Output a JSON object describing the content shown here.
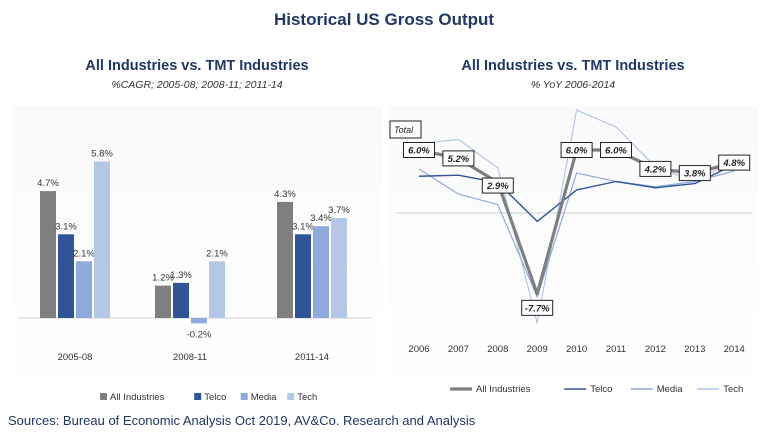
{
  "title": "Historical US Gross Output",
  "sources": "Sources: Bureau of Economic Analysis Oct 2019, AV&Co. Research and Analysis",
  "colors": {
    "heading": "#1f3864",
    "All Industries": "#7f7f7f",
    "Telco": "#2f5597",
    "Media": "#8faadc",
    "Tech": "#b4c7e7"
  },
  "chart_data": [
    {
      "type": "bar",
      "title": "All Industries vs. TMT Industries",
      "subtitle": "%CAGR; 2005-08; 2008-11; 2011-14",
      "categories": [
        "2005-08",
        "2008-11",
        "2011-14"
      ],
      "series": [
        {
          "name": "All Industries",
          "values": [
            4.7,
            1.2,
            4.3
          ],
          "labels": [
            "4.7%",
            "1.2%",
            "4.3%"
          ]
        },
        {
          "name": "Telco",
          "values": [
            3.1,
            1.3,
            3.1
          ],
          "labels": [
            "3.1%",
            "1.3%",
            "3.1%"
          ]
        },
        {
          "name": "Media",
          "values": [
            2.1,
            -0.2,
            3.4
          ],
          "labels": [
            "2.1%",
            "-0.2%",
            "3.4%"
          ]
        },
        {
          "name": "Tech",
          "values": [
            5.8,
            2.1,
            3.7
          ],
          "labels": [
            "5.8%",
            "2.1%",
            "3.7%"
          ]
        }
      ],
      "legend": "bottom",
      "grid": false
    },
    {
      "type": "line",
      "title": "All Industries vs. TMT Industries",
      "subtitle": "% YoY 2006-2014",
      "x": [
        "2006",
        "2007",
        "2008",
        "2009",
        "2010",
        "2011",
        "2012",
        "2013",
        "2014"
      ],
      "series": [
        {
          "name": "All Industries",
          "values": [
            6.0,
            5.2,
            2.9,
            -7.7,
            6.0,
            6.0,
            4.2,
            3.8,
            4.8
          ],
          "labels": [
            "6.0%",
            "5.2%",
            "2.9%",
            "-7.7%",
            "6.0%",
            "6.0%",
            "4.2%",
            "3.8%",
            "4.8%"
          ]
        },
        {
          "name": "Telco",
          "values": [
            3.5,
            3.6,
            2.9,
            -0.8,
            2.2,
            3.0,
            2.4,
            2.8,
            4.6
          ]
        },
        {
          "name": "Media",
          "values": [
            4.2,
            1.8,
            0.8,
            -8.0,
            3.8,
            3.0,
            2.5,
            3.0,
            4.0
          ]
        },
        {
          "name": "Tech",
          "values": [
            6.6,
            7.0,
            4.3,
            -10.5,
            9.8,
            8.2,
            4.4,
            3.0,
            5.0
          ]
        }
      ],
      "annotation": "Total",
      "ylim": [
        -11,
        11
      ],
      "legend": "bottom",
      "grid": false
    }
  ]
}
